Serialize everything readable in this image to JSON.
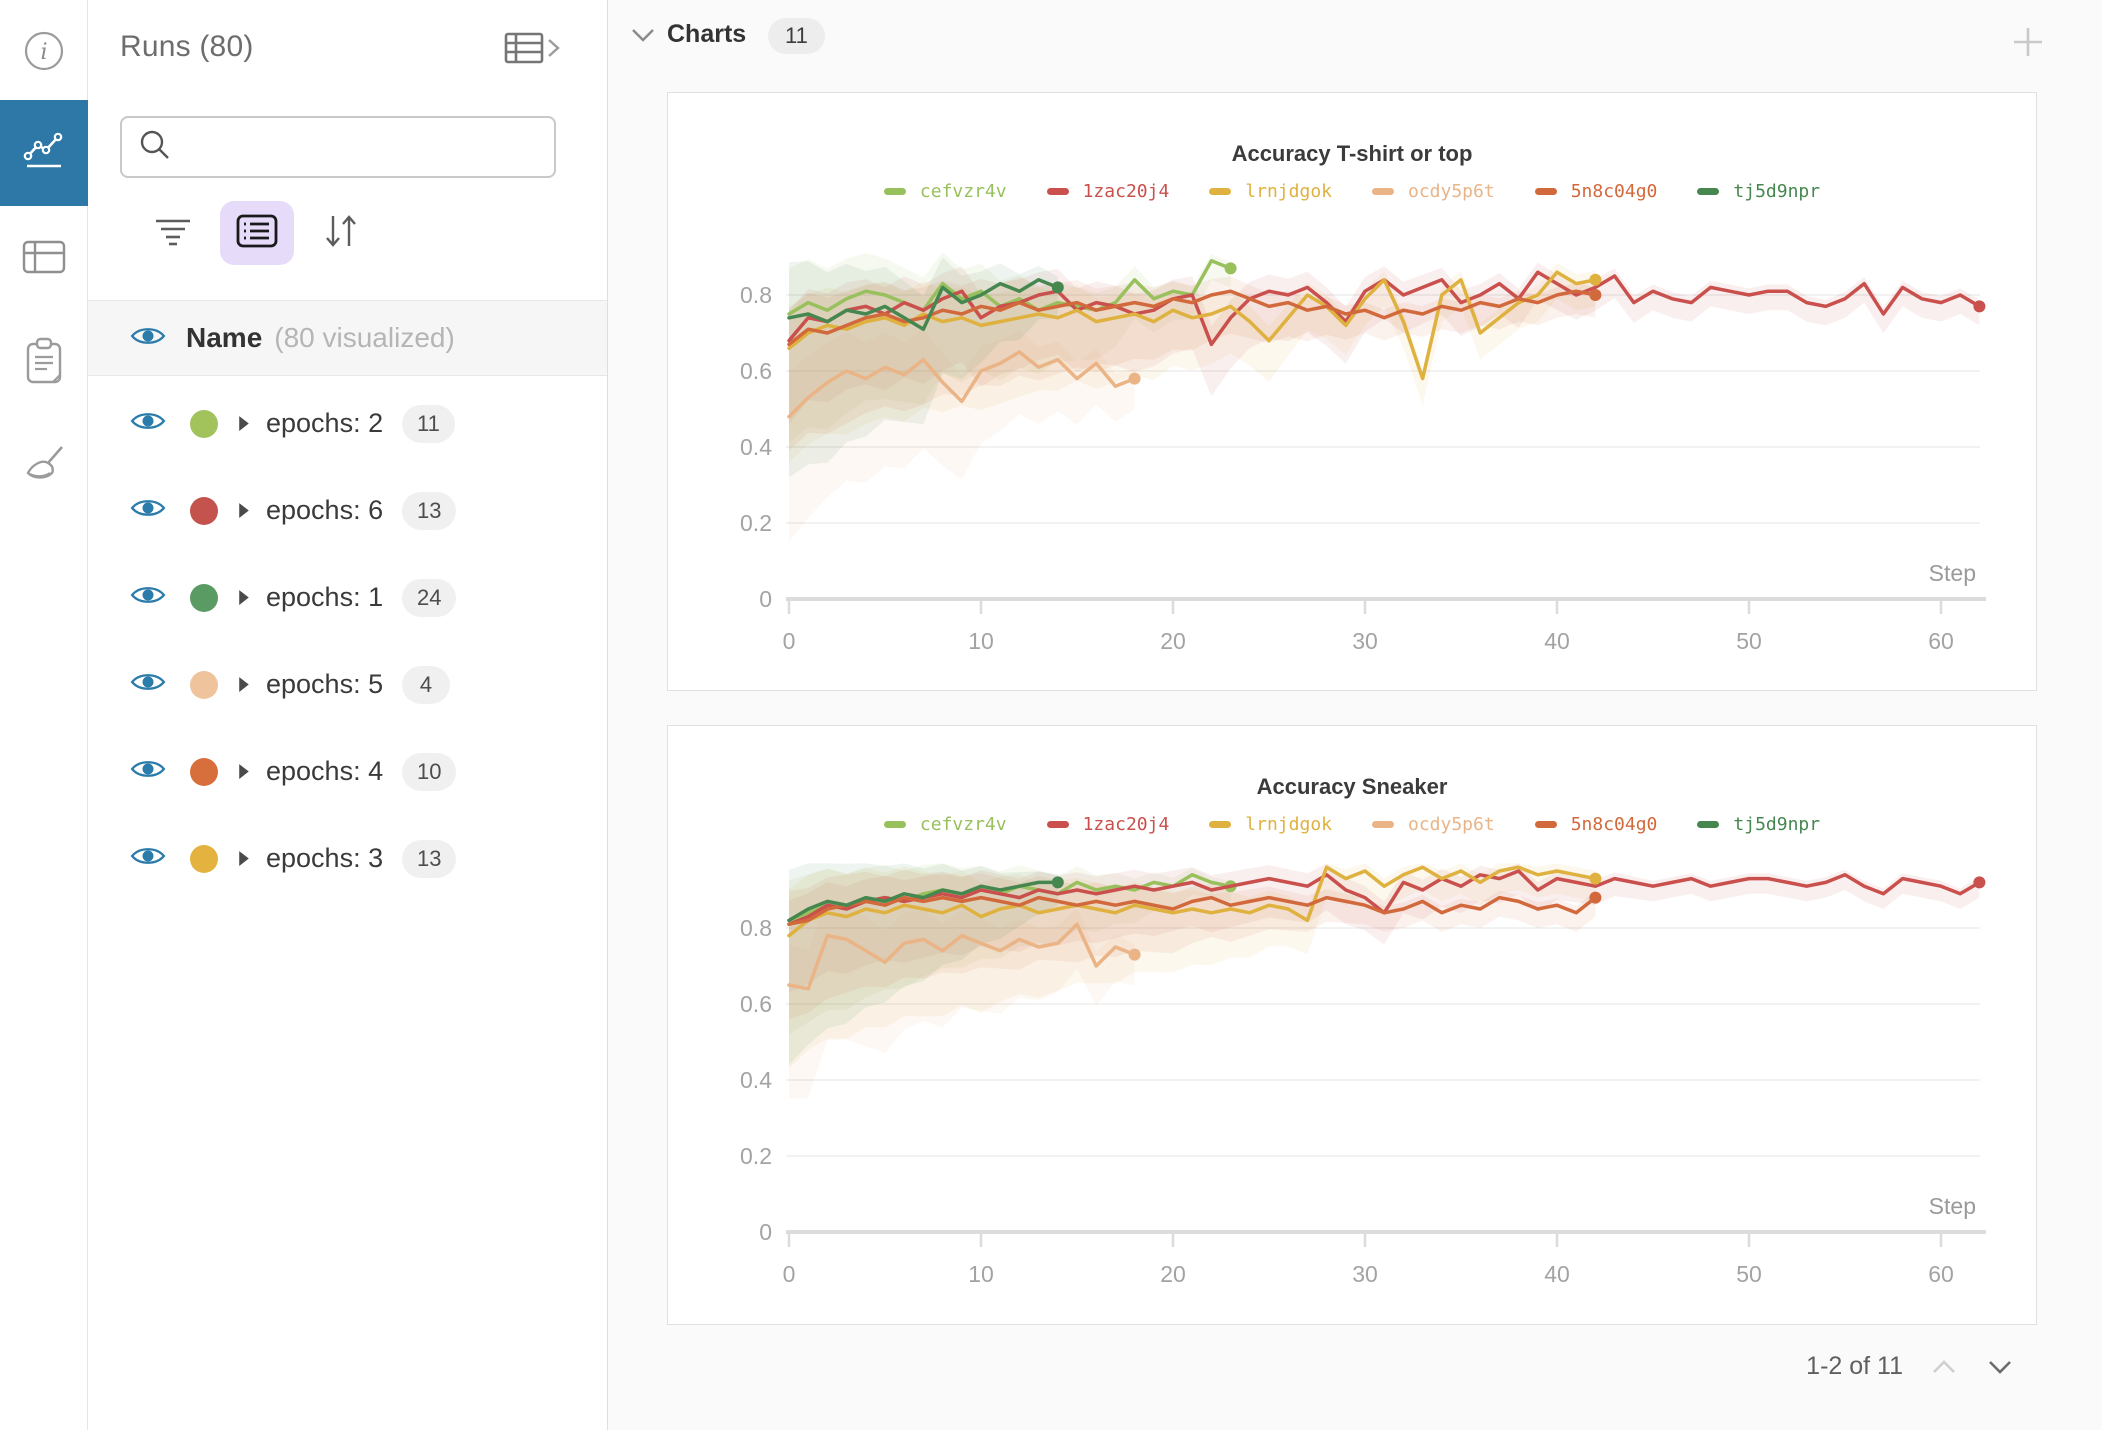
{
  "runs_panel": {
    "title": "Runs (80)",
    "search_placeholder": "",
    "name_header": {
      "label": "Name",
      "annotation": "(80 visualized)"
    },
    "runs": [
      {
        "label": "epochs: 2",
        "count": "11",
        "color": "#a2c35b"
      },
      {
        "label": "epochs: 6",
        "count": "13",
        "color": "#c4534e"
      },
      {
        "label": "epochs: 1",
        "count": "24",
        "color": "#5a9b63"
      },
      {
        "label": "epochs: 5",
        "count": "4",
        "color": "#efc39c"
      },
      {
        "label": "epochs: 4",
        "count": "10",
        "color": "#d76f3d"
      },
      {
        "label": "epochs: 3",
        "count": "13",
        "color": "#e4b33f"
      }
    ]
  },
  "charts_section": {
    "title": "Charts",
    "badge": "11",
    "pagination": "1-2 of 11"
  },
  "ui_colors": {
    "accent_blue": "#2e78a8",
    "eye_blue": "#2b7bab",
    "active_list_bg": "#e7dbfa",
    "axis_text": "#a3a3a3",
    "grid_line": "#ededed",
    "axis_line": "#dcdcdc"
  },
  "chart_data": [
    {
      "type": "line",
      "title": "Accuracy T-shirt or top",
      "xlabel": "Step",
      "ylabel": "",
      "xlim": [
        0,
        63
      ],
      "ylim": [
        0,
        0.95
      ],
      "xticks": [
        0,
        10,
        20,
        30,
        40,
        50,
        60
      ],
      "yticks": [
        0,
        0.2,
        0.4,
        0.6,
        0.8
      ],
      "grid": true,
      "legend_position": "top",
      "series": [
        {
          "name": "cefvzr4v",
          "color": "#98c05c",
          "band": [
            0.34,
            0.05,
            22
          ],
          "values": [
            0.75,
            0.78,
            0.76,
            0.79,
            0.81,
            0.8,
            0.78,
            0.76,
            0.83,
            0.79,
            0.81,
            0.77,
            0.79,
            0.76,
            0.78,
            0.77,
            0.76,
            0.78,
            0.84,
            0.79,
            0.81,
            0.8,
            0.89,
            0.87
          ]
        },
        {
          "name": "1zac20j4",
          "color": "#c9504c",
          "band": [
            0.22,
            0.05,
            45
          ],
          "values": [
            0.68,
            0.74,
            0.73,
            0.76,
            0.77,
            0.75,
            0.78,
            0.76,
            0.79,
            0.81,
            0.74,
            0.77,
            0.78,
            0.8,
            0.81,
            0.76,
            0.78,
            0.77,
            0.75,
            0.76,
            0.79,
            0.8,
            0.67,
            0.74,
            0.79,
            0.81,
            0.8,
            0.82,
            0.78,
            0.73,
            0.81,
            0.84,
            0.8,
            0.82,
            0.84,
            0.78,
            0.8,
            0.83,
            0.79,
            0.86,
            0.83,
            0.8,
            0.82,
            0.85,
            0.78,
            0.81,
            0.79,
            0.78,
            0.82,
            0.81,
            0.8,
            0.81,
            0.81,
            0.78,
            0.77,
            0.79,
            0.83,
            0.75,
            0.82,
            0.79,
            0.78,
            0.8,
            0.77
          ]
        },
        {
          "name": "lrnjdgok",
          "color": "#dfb13f",
          "band": [
            0.3,
            0.07,
            30
          ],
          "values": [
            0.66,
            0.7,
            0.72,
            0.71,
            0.73,
            0.74,
            0.72,
            0.75,
            0.73,
            0.74,
            0.72,
            0.73,
            0.74,
            0.75,
            0.74,
            0.76,
            0.73,
            0.74,
            0.75,
            0.73,
            0.76,
            0.74,
            0.75,
            0.77,
            0.73,
            0.68,
            0.74,
            0.8,
            0.77,
            0.72,
            0.79,
            0.84,
            0.73,
            0.58,
            0.8,
            0.84,
            0.7,
            0.74,
            0.78,
            0.8,
            0.86,
            0.83,
            0.84
          ]
        },
        {
          "name": "ocdy5p6t",
          "color": "#eab487",
          "band": [
            0.33,
            0.08,
            18
          ],
          "values": [
            0.48,
            0.53,
            0.57,
            0.6,
            0.58,
            0.61,
            0.59,
            0.63,
            0.57,
            0.52,
            0.6,
            0.62,
            0.65,
            0.61,
            0.63,
            0.58,
            0.62,
            0.56,
            0.58
          ]
        },
        {
          "name": "5n8c04g0",
          "color": "#d2693c",
          "band": [
            0.28,
            0.06,
            30
          ],
          "values": [
            0.67,
            0.71,
            0.7,
            0.72,
            0.74,
            0.75,
            0.73,
            0.74,
            0.76,
            0.75,
            0.77,
            0.76,
            0.78,
            0.76,
            0.77,
            0.78,
            0.76,
            0.77,
            0.78,
            0.77,
            0.79,
            0.78,
            0.8,
            0.81,
            0.79,
            0.77,
            0.78,
            0.76,
            0.77,
            0.75,
            0.76,
            0.74,
            0.76,
            0.75,
            0.77,
            0.76,
            0.78,
            0.77,
            0.79,
            0.78,
            0.8,
            0.81,
            0.8
          ]
        },
        {
          "name": "tj5d9npr",
          "color": "#45874f",
          "band": [
            0.42,
            0.08,
            14
          ],
          "values": [
            0.74,
            0.75,
            0.73,
            0.76,
            0.75,
            0.77,
            0.74,
            0.71,
            0.82,
            0.78,
            0.8,
            0.83,
            0.81,
            0.84,
            0.82
          ]
        }
      ]
    },
    {
      "type": "line",
      "title": "Accuracy Sneaker",
      "xlabel": "Step",
      "ylabel": "",
      "xlim": [
        0,
        63
      ],
      "ylim": [
        0,
        0.95
      ],
      "xticks": [
        0,
        10,
        20,
        30,
        40,
        50,
        60
      ],
      "yticks": [
        0,
        0.2,
        0.4,
        0.6,
        0.8
      ],
      "grid": true,
      "legend_position": "top",
      "series": [
        {
          "name": "cefvzr4v",
          "color": "#98c05c",
          "band": [
            0.3,
            0.04,
            22
          ],
          "values": [
            0.82,
            0.84,
            0.86,
            0.85,
            0.87,
            0.88,
            0.87,
            0.89,
            0.9,
            0.89,
            0.9,
            0.89,
            0.91,
            0.9,
            0.89,
            0.92,
            0.9,
            0.91,
            0.9,
            0.92,
            0.91,
            0.94,
            0.92,
            0.91
          ]
        },
        {
          "name": "1zac20j4",
          "color": "#c9504c",
          "band": [
            0.18,
            0.04,
            45
          ],
          "values": [
            0.81,
            0.83,
            0.86,
            0.85,
            0.87,
            0.88,
            0.87,
            0.88,
            0.89,
            0.88,
            0.9,
            0.89,
            0.88,
            0.9,
            0.89,
            0.9,
            0.89,
            0.9,
            0.91,
            0.9,
            0.91,
            0.92,
            0.9,
            0.91,
            0.92,
            0.93,
            0.92,
            0.91,
            0.94,
            0.9,
            0.88,
            0.84,
            0.92,
            0.9,
            0.93,
            0.91,
            0.94,
            0.93,
            0.95,
            0.9,
            0.93,
            0.92,
            0.91,
            0.93,
            0.92,
            0.91,
            0.92,
            0.93,
            0.91,
            0.92,
            0.93,
            0.93,
            0.92,
            0.91,
            0.92,
            0.94,
            0.91,
            0.89,
            0.93,
            0.92,
            0.91,
            0.89,
            0.92
          ]
        },
        {
          "name": "lrnjdgok",
          "color": "#dfb13f",
          "band": [
            0.35,
            0.06,
            30
          ],
          "values": [
            0.78,
            0.82,
            0.84,
            0.83,
            0.85,
            0.84,
            0.86,
            0.85,
            0.84,
            0.86,
            0.83,
            0.85,
            0.86,
            0.84,
            0.85,
            0.86,
            0.85,
            0.84,
            0.86,
            0.85,
            0.84,
            0.85,
            0.84,
            0.85,
            0.84,
            0.86,
            0.85,
            0.82,
            0.96,
            0.93,
            0.95,
            0.91,
            0.94,
            0.96,
            0.93,
            0.95,
            0.92,
            0.95,
            0.96,
            0.94,
            0.95,
            0.94,
            0.93
          ]
        },
        {
          "name": "ocdy5p6t",
          "color": "#eab487",
          "band": [
            0.3,
            0.08,
            18
          ],
          "values": [
            0.65,
            0.64,
            0.78,
            0.77,
            0.74,
            0.71,
            0.76,
            0.77,
            0.74,
            0.78,
            0.76,
            0.74,
            0.77,
            0.75,
            0.76,
            0.81,
            0.7,
            0.75,
            0.73
          ]
        },
        {
          "name": "5n8c04g0",
          "color": "#d2693c",
          "band": [
            0.25,
            0.05,
            30
          ],
          "values": [
            0.81,
            0.82,
            0.85,
            0.86,
            0.87,
            0.86,
            0.88,
            0.87,
            0.88,
            0.87,
            0.88,
            0.87,
            0.86,
            0.88,
            0.87,
            0.86,
            0.87,
            0.86,
            0.87,
            0.86,
            0.85,
            0.87,
            0.88,
            0.86,
            0.87,
            0.88,
            0.87,
            0.86,
            0.88,
            0.87,
            0.86,
            0.84,
            0.85,
            0.87,
            0.84,
            0.86,
            0.85,
            0.88,
            0.87,
            0.85,
            0.86,
            0.84,
            0.88
          ]
        },
        {
          "name": "tj5d9npr",
          "color": "#45874f",
          "band": [
            0.38,
            0.06,
            14
          ],
          "values": [
            0.82,
            0.85,
            0.87,
            0.86,
            0.88,
            0.87,
            0.89,
            0.88,
            0.9,
            0.89,
            0.91,
            0.9,
            0.91,
            0.92,
            0.92
          ]
        }
      ]
    }
  ]
}
